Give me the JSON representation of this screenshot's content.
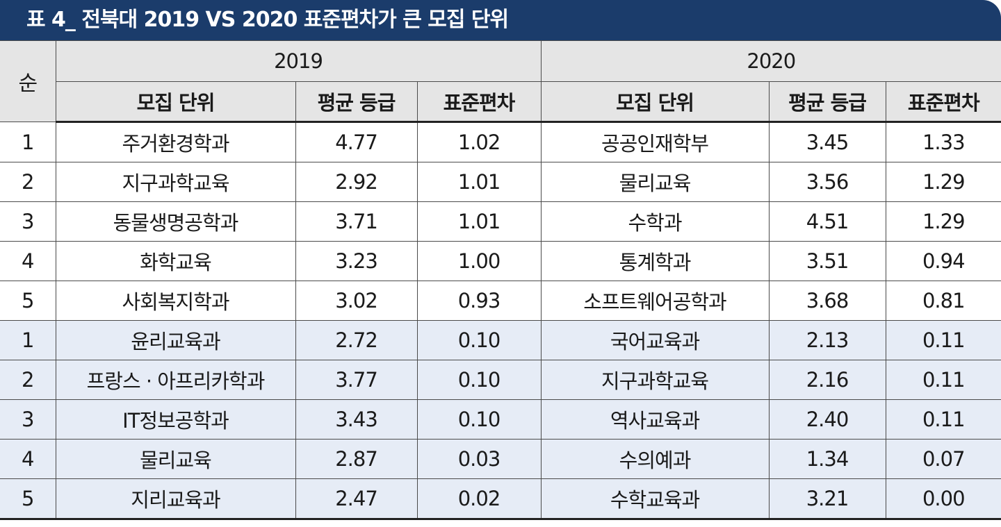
{
  "title": "표 4_ 전북대 2019 VS 2020 표준편차가 큰 모집 단위",
  "header": {
    "rank": "순",
    "year1": "2019",
    "year2": "2020",
    "unit": "모집 단위",
    "avg": "평균 등급",
    "std": "표준편차"
  },
  "rows": [
    {
      "rank": "1",
      "u1": "주거환경학과",
      "a1": "4.77",
      "s1": "1.02",
      "u2": "공공인재학부",
      "a2": "3.45",
      "s2": "1.33"
    },
    {
      "rank": "2",
      "u1": "지구과학교육",
      "a1": "2.92",
      "s1": "1.01",
      "u2": "물리교육",
      "a2": "3.56",
      "s2": "1.29"
    },
    {
      "rank": "3",
      "u1": "동물생명공학과",
      "a1": "3.71",
      "s1": "1.01",
      "u2": "수학과",
      "a2": "4.51",
      "s2": "1.29"
    },
    {
      "rank": "4",
      "u1": "화학교육",
      "a1": "3.23",
      "s1": "1.00",
      "u2": "통계학과",
      "a2": "3.51",
      "s2": "0.94"
    },
    {
      "rank": "5",
      "u1": "사회복지학과",
      "a1": "3.02",
      "s1": "0.93",
      "u2": "소프트웨어공학과",
      "a2": "3.68",
      "s2": "0.81"
    },
    {
      "rank": "1",
      "u1": "윤리교육과",
      "a1": "2.72",
      "s1": "0.10",
      "u2": "국어교육과",
      "a2": "2.13",
      "s2": "0.11"
    },
    {
      "rank": "2",
      "u1": "프랑스 · 아프리카학과",
      "a1": "3.77",
      "s1": "0.10",
      "u2": "지구과학교육",
      "a2": "2.16",
      "s2": "0.11"
    },
    {
      "rank": "3",
      "u1": "IT정보공학과",
      "a1": "3.43",
      "s1": "0.10",
      "u2": "역사교육과",
      "a2": "2.40",
      "s2": "0.11"
    },
    {
      "rank": "4",
      "u1": "물리교육",
      "a1": "2.87",
      "s1": "0.03",
      "u2": "수의예과",
      "a2": "1.34",
      "s2": "0.07"
    },
    {
      "rank": "5",
      "u1": "지리교육과",
      "a1": "2.47",
      "s1": "0.02",
      "u2": "수학교육과",
      "a2": "3.21",
      "s2": "0.00"
    }
  ],
  "colors": {
    "title_bg": "#1b3c6b",
    "header_bg": "#e5e5e5",
    "low_rows_bg": "#e6ecf6"
  }
}
